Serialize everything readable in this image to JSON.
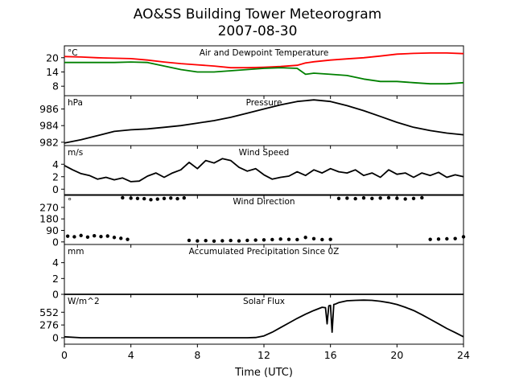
{
  "figure": {
    "title_line1": "AO&SS Building Tower Meteorogram",
    "title_line2": "2007-08-30",
    "xlabel": "Time (UTC)"
  },
  "chart_data": [
    {
      "type": "line",
      "title": "Air and Dewpoint Temperature",
      "unit_label": "°C",
      "xlim": [
        0,
        24
      ],
      "ylim": [
        4,
        25
      ],
      "yticks": [
        8,
        14,
        20
      ],
      "series": [
        {
          "name": "",
          "color": "#ff0000",
          "x": [
            0,
            1,
            2,
            3,
            4,
            5,
            6,
            7,
            8,
            9,
            10,
            11,
            12,
            13,
            14,
            14.5,
            15,
            16,
            17,
            18,
            19,
            20,
            21,
            22,
            23,
            24
          ],
          "y": [
            20.5,
            20.3,
            20,
            19.8,
            19.6,
            19,
            18.2,
            17.5,
            17,
            16.5,
            15.8,
            15.8,
            16,
            16.3,
            16.8,
            17.8,
            18.3,
            19,
            19.5,
            20,
            20.7,
            21.5,
            21.8,
            22,
            22,
            21.7
          ]
        },
        {
          "name": "",
          "color": "#008000",
          "x": [
            0,
            1,
            2,
            3,
            4,
            5,
            6,
            7,
            8,
            9,
            10,
            11,
            12,
            13,
            14,
            14.5,
            15,
            16,
            17,
            18,
            19,
            20,
            21,
            22,
            23,
            24
          ],
          "y": [
            18,
            18,
            18,
            18,
            18.2,
            18,
            16.5,
            15,
            14,
            14,
            14.5,
            15,
            15.5,
            15.8,
            15.5,
            13,
            13.5,
            13,
            12.5,
            11,
            10,
            10,
            9.5,
            9,
            9,
            9.5
          ]
        }
      ]
    },
    {
      "type": "line",
      "title": "Pressure",
      "unit_label": "hPa",
      "xlim": [
        0,
        24
      ],
      "ylim": [
        981.6,
        987.6
      ],
      "yticks": [
        982,
        984,
        986
      ],
      "series": [
        {
          "name": "",
          "color": "#000000",
          "x": [
            0,
            1,
            2,
            3,
            4,
            5,
            6,
            7,
            8,
            9,
            10,
            11,
            12,
            13,
            14,
            15,
            16,
            17,
            18,
            19,
            20,
            21,
            22,
            23,
            24
          ],
          "y": [
            981.9,
            982.3,
            982.8,
            983.3,
            983.5,
            983.6,
            983.8,
            984,
            984.3,
            984.6,
            985,
            985.5,
            986,
            986.5,
            986.9,
            987.1,
            986.9,
            986.4,
            985.8,
            985.1,
            984.4,
            983.8,
            983.4,
            983.1,
            982.9
          ]
        }
      ]
    },
    {
      "type": "line",
      "title": "Wind Speed",
      "unit_label": "m/s",
      "xlim": [
        0,
        24
      ],
      "ylim": [
        -1,
        7
      ],
      "yticks": [
        0,
        2,
        4
      ],
      "series": [
        {
          "name": "",
          "color": "#000000",
          "x": [
            0,
            0.5,
            1,
            1.5,
            2,
            2.5,
            3,
            3.5,
            4,
            4.5,
            5,
            5.5,
            6,
            6.5,
            7,
            7.5,
            8,
            8.5,
            9,
            9.5,
            10,
            10.5,
            11,
            11.5,
            12,
            12.5,
            13,
            13.5,
            14,
            14.5,
            15,
            15.5,
            16,
            16.5,
            17,
            17.5,
            18,
            18.5,
            19,
            19.5,
            20,
            20.5,
            21,
            21.5,
            22,
            22.5,
            23,
            23.5,
            24
          ],
          "y": [
            3.8,
            3.1,
            2.5,
            2.2,
            1.6,
            1.9,
            1.5,
            1.8,
            1.2,
            1.3,
            2.1,
            2.6,
            1.9,
            2.6,
            3.1,
            4.3,
            3.3,
            4.6,
            4.2,
            4.9,
            4.6,
            3.5,
            2.9,
            3.3,
            2.3,
            1.6,
            1.9,
            2.1,
            2.8,
            2.2,
            3.1,
            2.6,
            3.3,
            2.8,
            2.6,
            3.1,
            2.2,
            2.6,
            1.9,
            3.1,
            2.4,
            2.6,
            1.9,
            2.6,
            2.2,
            2.7,
            1.9,
            2.3,
            2.0
          ]
        }
      ]
    },
    {
      "type": "scatter",
      "title": "Wind Direction",
      "unit_label": "°",
      "xlim": [
        0,
        24
      ],
      "ylim": [
        -20,
        370
      ],
      "yticks": [
        0,
        90,
        180,
        270
      ],
      "series": [
        {
          "name": "",
          "color": "#000000",
          "x": [
            0.2,
            0.6,
            1,
            1.4,
            1.8,
            2.2,
            2.6,
            3,
            3.4,
            3.8,
            3.5,
            4,
            4.4,
            4.8,
            5.2,
            5.6,
            6,
            6.4,
            6.8,
            7.2,
            7.5,
            8,
            8.5,
            9,
            9.5,
            10,
            10.5,
            11,
            11.5,
            12,
            12.5,
            13,
            13.5,
            14,
            14.5,
            15,
            15.5,
            16,
            16.5,
            17,
            17.5,
            18,
            18.5,
            19,
            19.5,
            20,
            20.5,
            21,
            21.5,
            22,
            22.5,
            23,
            23.5,
            24
          ],
          "y": [
            45,
            40,
            50,
            38,
            48,
            42,
            46,
            35,
            28,
            20,
            345,
            342,
            340,
            338,
            330,
            335,
            340,
            343,
            338,
            344,
            12,
            8,
            10,
            6,
            9,
            11,
            8,
            12,
            14,
            16,
            18,
            22,
            20,
            18,
            35,
            25,
            18,
            20,
            340,
            342,
            338,
            344,
            340,
            343,
            345,
            341,
            336,
            340,
            345,
            20,
            22,
            24,
            26,
            40
          ]
        }
      ]
    },
    {
      "type": "line",
      "title": "Accumulated Precipitation Since 0Z",
      "unit_label": "mm",
      "xlim": [
        0,
        24
      ],
      "ylim": [
        0,
        6.3
      ],
      "yticks": [
        0,
        2,
        4
      ],
      "series": [
        {
          "name": "",
          "color": "#000000",
          "x": [
            0,
            24
          ],
          "y": [
            0,
            0
          ]
        }
      ]
    },
    {
      "type": "line",
      "title": "Solar Flux",
      "unit_label": "W/m^2",
      "xlim": [
        0,
        24
      ],
      "ylim": [
        -140,
        940
      ],
      "yticks": [
        0,
        276,
        552
      ],
      "series": [
        {
          "name": "",
          "color": "#000000",
          "x": [
            0,
            1,
            2,
            3,
            4,
            5,
            6,
            7,
            8,
            9,
            10,
            11,
            11.5,
            12,
            12.5,
            13,
            13.5,
            14,
            14.5,
            15,
            15.5,
            15.7,
            15.8,
            15.9,
            16,
            16.1,
            16.2,
            16.3,
            16.5,
            17,
            17.5,
            18,
            18.5,
            19,
            19.5,
            20,
            20.5,
            21,
            21.5,
            22,
            22.5,
            23,
            23.5,
            24
          ],
          "y": [
            20,
            0,
            0,
            0,
            0,
            0,
            0,
            0,
            0,
            0,
            0,
            0,
            5,
            40,
            120,
            220,
            320,
            420,
            510,
            590,
            660,
            650,
            300,
            690,
            700,
            120,
            720,
            730,
            760,
            800,
            810,
            815,
            810,
            790,
            760,
            720,
            660,
            590,
            500,
            400,
            300,
            200,
            110,
            20
          ]
        }
      ]
    }
  ],
  "xaxis": {
    "ticks": [
      "0",
      "4",
      "8",
      "12",
      "16",
      "20",
      "24"
    ]
  }
}
